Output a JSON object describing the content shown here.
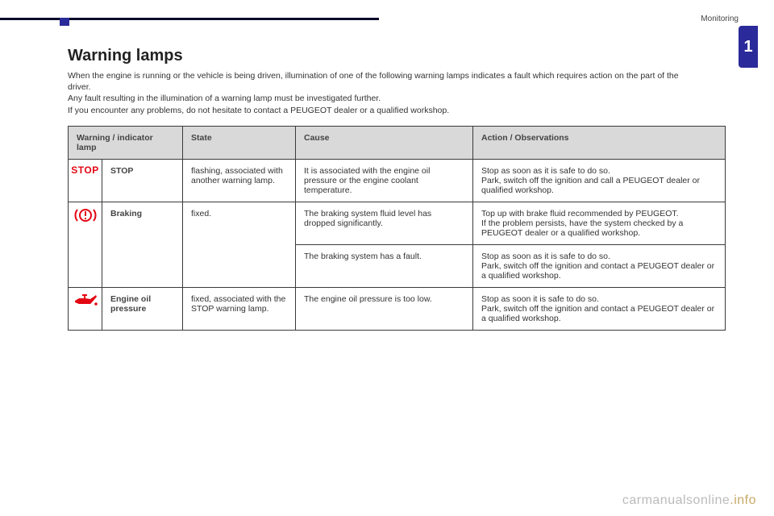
{
  "header": {
    "section": "Monitoring",
    "chapter": "1"
  },
  "title": "Warning lamps",
  "intro_line1": "When the engine is running or the vehicle is being driven, illumination of one of the following warning lamps indicates a fault which requires action on the part of the driver.",
  "intro_line2": "Any fault resulting in the illumination of a warning lamp must be investigated further.",
  "intro_line3": "If you encounter any problems, do not hesitate to contact a PEUGEOT dealer or a qualified workshop.",
  "table": {
    "headers": {
      "lamp": "Warning / indicator lamp",
      "state": "State",
      "cause": "Cause",
      "action": "Action / Observations"
    },
    "rows": [
      {
        "icon": "STOP",
        "name": "STOP",
        "state": "flashing, associated with another warning lamp.",
        "cause": "It is associated with the engine oil pressure or the engine coolant temperature.",
        "action": "Stop as soon as it is safe to do so.\nPark, switch off the ignition and call a PEUGEOT dealer or qualified workshop."
      },
      {
        "icon": "brake",
        "name": "Braking",
        "state": "fixed.",
        "subrows": [
          {
            "cause": "The braking system fluid level has dropped significantly.",
            "action": "Top up with brake fluid recommended by PEUGEOT.\nIf the problem persists, have the system checked by a PEUGEOT dealer or a qualified workshop."
          },
          {
            "cause": "The braking system has a fault.",
            "action": "Stop as soon as it is safe to do so.\nPark, switch off the ignition and contact a PEUGEOT dealer or a qualified workshop."
          }
        ]
      },
      {
        "icon": "oil",
        "name": "Engine oil pressure",
        "state": "fixed, associated with the STOP warning lamp.",
        "cause": "The engine oil pressure is too low.",
        "action": "Stop as soon it is safe to do so.\nPark, switch off the ignition and contact a PEUGEOT dealer or a qualified workshop."
      }
    ]
  },
  "footer": {
    "brand": "carmanualsonline",
    "tld": ".info"
  },
  "colors": {
    "accent": "#2a2a9a",
    "warn_red": "#e30613",
    "header_bg": "#d9d9d9"
  }
}
